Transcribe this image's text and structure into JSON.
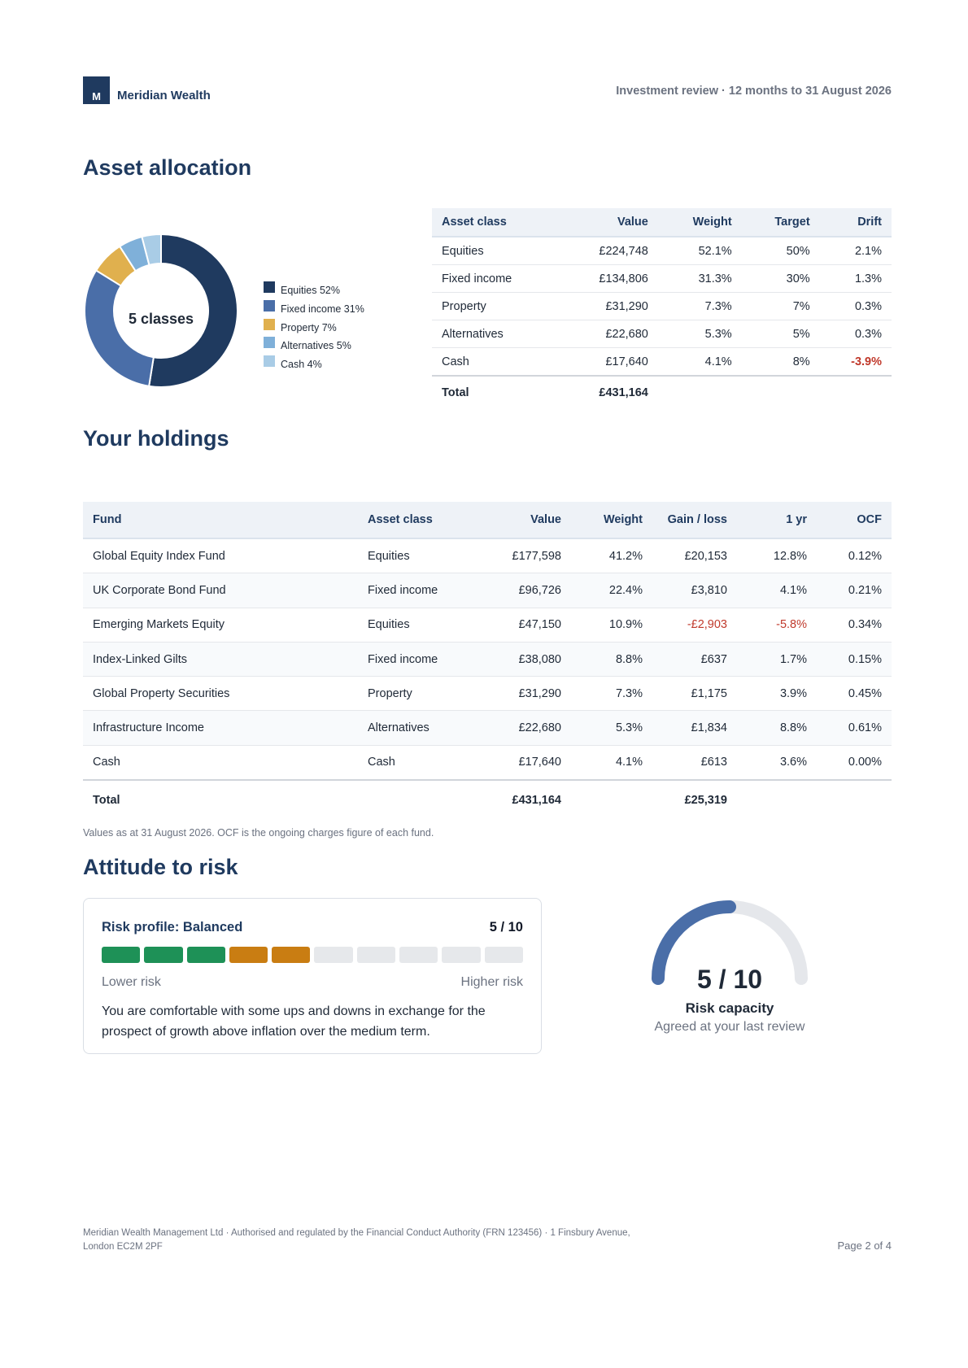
{
  "header": {
    "logo_letter": "M",
    "brand": "Meridian Wealth",
    "report_title": "Investment review · 12 months to 31 August 2026"
  },
  "allocation": {
    "heading": "Asset allocation",
    "donut_center": "5 classes",
    "legend": [
      {
        "label": "Equities 52%",
        "color": "#1f3a5f"
      },
      {
        "label": "Fixed income 31%",
        "color": "#4a6ea8"
      },
      {
        "label": "Property 7%",
        "color": "#e0b04e"
      },
      {
        "label": "Alternatives 5%",
        "color": "#7fb0d9"
      },
      {
        "label": "Cash 4%",
        "color": "#a9cce6"
      }
    ],
    "columns": [
      "Asset class",
      "Value",
      "Weight",
      "Target",
      "Drift"
    ],
    "rows": [
      {
        "asset": "Equities",
        "value": "£224,748",
        "weight": "52.1%",
        "target": "50%",
        "drift": "2.1%"
      },
      {
        "asset": "Fixed income",
        "value": "£134,806",
        "weight": "31.3%",
        "target": "30%",
        "drift": "1.3%"
      },
      {
        "asset": "Property",
        "value": "£31,290",
        "weight": "7.3%",
        "target": "7%",
        "drift": "0.3%"
      },
      {
        "asset": "Alternatives",
        "value": "£22,680",
        "weight": "5.3%",
        "target": "5%",
        "drift": "0.3%"
      },
      {
        "asset": "Cash",
        "value": "£17,640",
        "weight": "4.1%",
        "target": "8%",
        "drift": "-3.9%"
      }
    ],
    "total_label": "Total",
    "total_value": "£431,164"
  },
  "holdings": {
    "heading": "Your holdings",
    "columns": [
      "Fund",
      "Asset class",
      "Value",
      "Weight",
      "Gain / loss",
      "1 yr",
      "OCF"
    ],
    "rows": [
      {
        "fund": "Global Equity Index Fund",
        "asset": "Equities",
        "value": "£177,598",
        "weight": "41.2%",
        "gain": "£20,153",
        "yr": "12.8%",
        "ocf": "0.12%"
      },
      {
        "fund": "UK Corporate Bond Fund",
        "asset": "Fixed income",
        "value": "£96,726",
        "weight": "22.4%",
        "gain": "£3,810",
        "yr": "4.1%",
        "ocf": "0.21%"
      },
      {
        "fund": "Emerging Markets Equity",
        "asset": "Equities",
        "value": "£47,150",
        "weight": "10.9%",
        "gain": "-£2,903",
        "yr": "-5.8%",
        "ocf": "0.34%"
      },
      {
        "fund": "Index-Linked Gilts",
        "asset": "Fixed income",
        "value": "£38,080",
        "weight": "8.8%",
        "gain": "£637",
        "yr": "1.7%",
        "ocf": "0.15%"
      },
      {
        "fund": "Global Property Securities",
        "asset": "Property",
        "value": "£31,290",
        "weight": "7.3%",
        "gain": "£1,175",
        "yr": "3.9%",
        "ocf": "0.45%"
      },
      {
        "fund": "Infrastructure Income",
        "asset": "Alternatives",
        "value": "£22,680",
        "weight": "5.3%",
        "gain": "£1,834",
        "yr": "8.8%",
        "ocf": "0.61%"
      },
      {
        "fund": "Cash",
        "asset": "Cash",
        "value": "£17,640",
        "weight": "4.1%",
        "gain": "£613",
        "yr": "3.6%",
        "ocf": "0.00%"
      }
    ],
    "total_label": "Total",
    "total_value": "£431,164",
    "total_gain": "£25,319",
    "footnote": "Values as at 31 August 2026. OCF is the ongoing charges figure of each fund."
  },
  "risk": {
    "heading": "Attitude to risk",
    "profile_label": "Risk profile: Balanced",
    "score": "5 / 10",
    "level": 5,
    "segments": 10,
    "segment_colors": [
      "#1e9157",
      "#1e9157",
      "#1e9157",
      "#c97d12",
      "#c97d12"
    ],
    "low_label": "Lower risk",
    "high_label": "Higher risk",
    "description": "You are comfortable with some ups and downs in exchange for the prospect of growth above inflation over the medium term.",
    "gauge_value": "5 / 10",
    "gauge_fraction": 0.5,
    "gauge_label": "Risk capacity",
    "gauge_sub": "Agreed at your last review"
  },
  "footer": {
    "legal": "Meridian Wealth Management Ltd · Authorised and regulated by the Financial Conduct Authority (FRN 123456) · 1 Finsbury Avenue, London EC2M 2PF",
    "page": "Page 2 of 4"
  },
  "chart_data": {
    "type": "pie",
    "categories": [
      "Equities",
      "Fixed income",
      "Property",
      "Alternatives",
      "Cash"
    ],
    "values": [
      52,
      31,
      7,
      5,
      4
    ],
    "center_label": "5 classes"
  }
}
